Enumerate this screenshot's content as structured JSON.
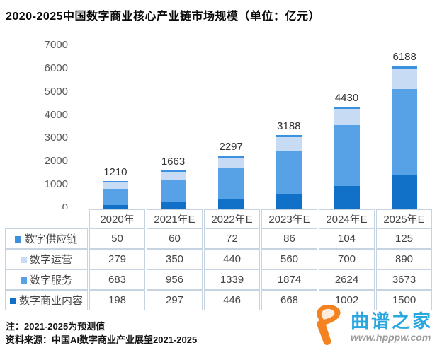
{
  "title": "2020-2025中国数字商业核心产业链市场规模（单位：亿元）",
  "notes": {
    "line1": "注：2021-2025为预测值",
    "line2": "资料来源：中国AI数字商业产业展望2021-2025"
  },
  "watermark": {
    "site_name": "曲谱之家",
    "url": "www.hpppw.com",
    "logo_color": "#f58220",
    "text_color": "#2ba7df"
  },
  "chart_data": {
    "type": "bar",
    "stacked": true,
    "title": "2020-2025中国数字商业核心产业链市场规模",
    "unit": "亿元",
    "categories": [
      "2020年",
      "2021年E",
      "2022年E",
      "2023年E",
      "2024年E",
      "2025年E"
    ],
    "series": [
      {
        "name": "数字供应链",
        "color": "#3b91e0",
        "values": [
          50,
          60,
          72,
          86,
          104,
          125
        ]
      },
      {
        "name": "数字运营",
        "color": "#c7dcf4",
        "values": [
          279,
          350,
          440,
          560,
          700,
          890
        ]
      },
      {
        "name": "数字服务",
        "color": "#57a2e7",
        "values": [
          683,
          956,
          1339,
          1874,
          2624,
          3673
        ]
      },
      {
        "name": "数字商业内容",
        "color": "#1170c8",
        "values": [
          198,
          297,
          446,
          668,
          1002,
          1500
        ]
      }
    ],
    "totals": [
      1210,
      1663,
      2297,
      3188,
      4430,
      6188
    ],
    "ylim": [
      0,
      7000
    ],
    "yticks": [
      0,
      1000,
      2000,
      3000,
      4000,
      5000,
      6000,
      7000
    ],
    "grid": false,
    "legend_position": "table-left-column",
    "stack_order_bottom_to_top": [
      "数字商业内容",
      "数字服务",
      "数字运营",
      "数字供应链"
    ]
  }
}
